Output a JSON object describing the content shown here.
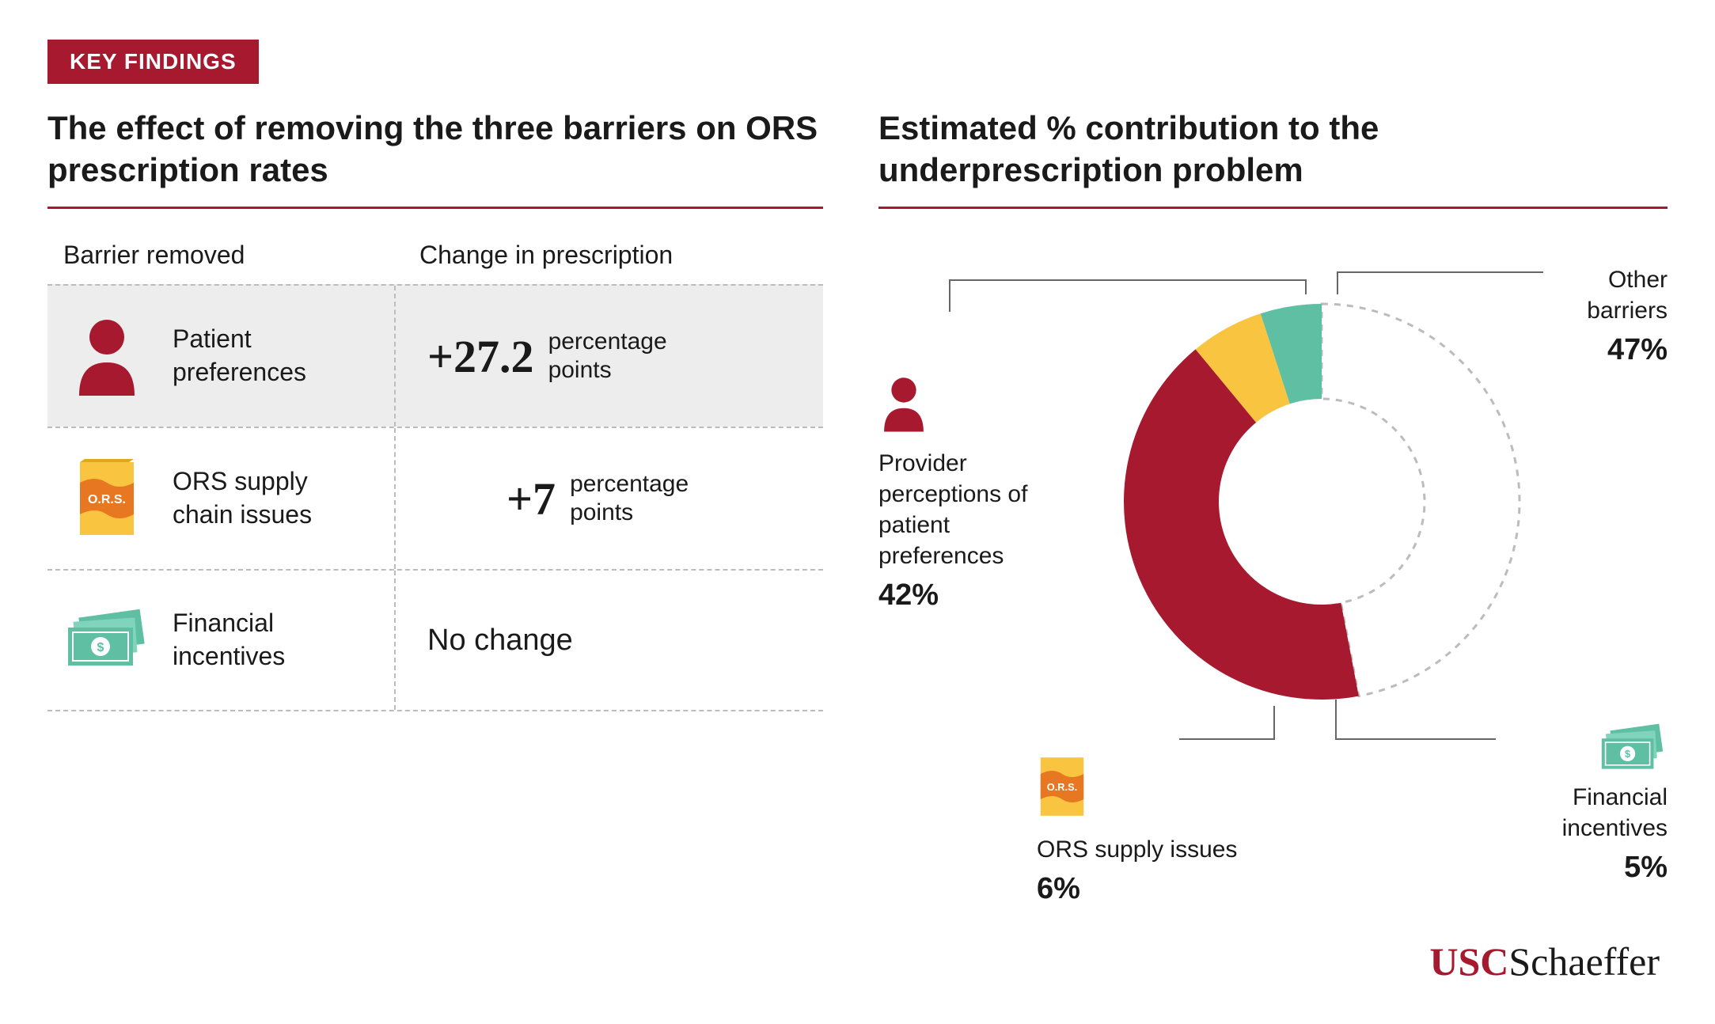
{
  "badge": {
    "text": "KEY FINDINGS",
    "bg": "#a6192e",
    "color": "#ffffff",
    "fontsize": 28
  },
  "colors": {
    "maroon": "#a6192e",
    "gold": "#f9c440",
    "orange": "#e87722",
    "teal": "#5fbfa3",
    "dash": "#bcbcbc",
    "text": "#1a1a1a",
    "row_highlight": "#ededed"
  },
  "left": {
    "title": "The effect of removing the three barriers on ORS prescription rates",
    "col1_header": "Barrier removed",
    "col2_header": "Change in prescription",
    "rows": [
      {
        "icon": "person",
        "label": "Patient preferences",
        "value": "+27.2",
        "unit": "percentage points",
        "highlight": true
      },
      {
        "icon": "ors",
        "label": "ORS supply chain issues",
        "value": "+7",
        "unit": "percentage points",
        "highlight": false
      },
      {
        "icon": "money",
        "label": "Financial incentives",
        "text": "No change",
        "highlight": false
      }
    ]
  },
  "right": {
    "title": "Estimated % contribution to the underprescription problem",
    "donut": {
      "type": "donut",
      "inner_radius_ratio": 0.52,
      "slices": [
        {
          "key": "other",
          "label": "Other barriers",
          "pct": 47,
          "fill": "#ffffff",
          "stroke": "#bcbcbc",
          "dashed": true
        },
        {
          "key": "provider",
          "label": "Provider perceptions of patient preferences",
          "pct": 42,
          "fill": "#a6192e"
        },
        {
          "key": "ors",
          "label": "ORS supply issues",
          "pct": 6,
          "fill": "#f9c440"
        },
        {
          "key": "financial",
          "label": "Financial incentives",
          "pct": 5,
          "fill": "#5fbfa3"
        }
      ]
    }
  },
  "logo": {
    "part1": "USC",
    "part2": "Schaeffer",
    "color1": "#a6192e"
  }
}
